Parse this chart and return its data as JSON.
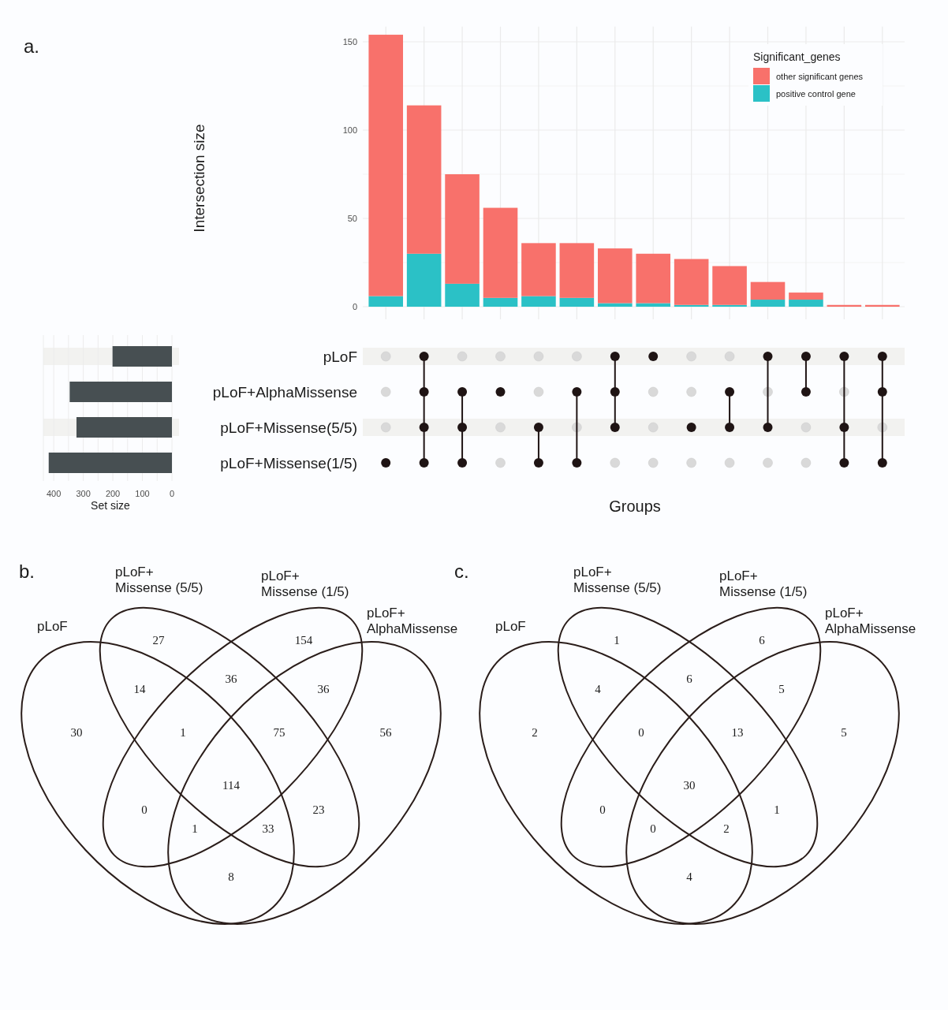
{
  "chart_data": [
    {
      "type": "bar",
      "xlabel": "Groups",
      "ylabel": "Intersection size",
      "stacked": true,
      "legend": "top right",
      "legend_title": "Significant_genes",
      "grid": true,
      "ylim": [
        0,
        155
      ],
      "yticks": [
        0,
        50,
        100,
        150
      ],
      "categories": [
        null,
        null,
        null,
        null,
        null,
        null,
        null,
        null,
        null,
        null,
        null,
        null,
        null,
        null
      ],
      "series": [
        {
          "name": "positive control gene",
          "color": "#2bc1c6",
          "values": [
            6,
            30,
            13,
            5,
            6,
            5,
            2,
            2,
            1,
            1,
            4,
            4,
            0,
            0
          ]
        },
        {
          "name": "other significant genes",
          "color": "#f8716b",
          "values": [
            148,
            84,
            62,
            51,
            30,
            31,
            31,
            28,
            26,
            22,
            10,
            4,
            1,
            1
          ]
        }
      ]
    },
    {
      "type": "bar",
      "title": "a.",
      "orientation": "horizontal",
      "xlabel": "Set size",
      "color": "#474f52",
      "grid": "x",
      "xlim": [
        435,
        0
      ],
      "xticks": [
        400,
        300,
        200,
        100,
        0
      ],
      "categories": [
        "pLoF",
        "pLoF+AlphaMissense",
        "pLoF+Missense(5/5)",
        "pLoF+Missense(1/5)"
      ],
      "values": [
        201,
        346,
        323,
        417
      ]
    },
    {
      "type": "other",
      "title": "b.",
      "data_labels": true,
      "annotations": [
        "pLoF",
        "pLoF+\nMissense (5/5)",
        "pLoF+\nMissense (1/5)",
        "pLoF+\nAlphaMissense"
      ],
      "categories": [
        null,
        null,
        null,
        null,
        null,
        null,
        null,
        null,
        null,
        null,
        null,
        null,
        null,
        null,
        null
      ],
      "values": [
        27,
        154,
        14,
        36,
        36,
        30,
        1,
        75,
        56,
        114,
        0,
        23,
        1,
        33,
        8
      ]
    },
    {
      "type": "other",
      "title": "c.",
      "data_labels": true,
      "annotations": [
        "pLoF",
        "pLoF+\nMissense (5/5)",
        "pLoF+\nMissense (1/5)",
        "pLoF+\nAlphaMissense"
      ],
      "categories": [
        null,
        null,
        null,
        null,
        null,
        null,
        null,
        null,
        null,
        null,
        null,
        null,
        null,
        null,
        null
      ],
      "values": [
        1,
        6,
        4,
        6,
        5,
        2,
        0,
        13,
        5,
        30,
        0,
        1,
        0,
        2,
        4
      ]
    }
  ]
}
